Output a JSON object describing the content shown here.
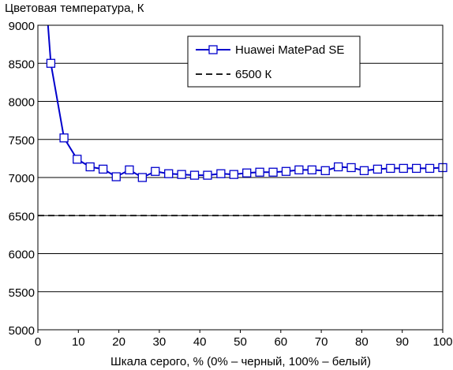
{
  "chart_data": {
    "type": "line",
    "title": "",
    "ylabel": "Цветовая температура, К",
    "xlabel": "Шкала серого, % (0% – черный, 100% – белый)",
    "xlim": [
      0,
      100
    ],
    "ylim": [
      5000,
      9000
    ],
    "x_ticks": [
      "0",
      "10",
      "20",
      "30",
      "40",
      "50",
      "60",
      "70",
      "80",
      "90",
      "100"
    ],
    "y_ticks": [
      "5000",
      "5500",
      "6000",
      "6500",
      "7000",
      "7500",
      "8000",
      "8500",
      "9000"
    ],
    "grid": "horizontal",
    "legend_position": "top-right",
    "series": [
      {
        "name": "Huawei MatePad SE",
        "color": "#0000cc",
        "marker": "square",
        "x": [
          3.2,
          6.45,
          9.7,
          12.9,
          16.1,
          19.35,
          22.6,
          25.8,
          29.0,
          32.3,
          35.5,
          38.7,
          41.9,
          45.2,
          48.4,
          51.6,
          54.8,
          58.1,
          61.3,
          64.5,
          67.7,
          71.0,
          74.2,
          77.4,
          80.6,
          83.9,
          87.1,
          90.3,
          93.5,
          96.8,
          100
        ],
        "values": [
          8500,
          7520,
          7240,
          7140,
          7110,
          7010,
          7100,
          7000,
          7080,
          7050,
          7040,
          7030,
          7030,
          7050,
          7040,
          7060,
          7070,
          7070,
          7080,
          7100,
          7100,
          7090,
          7140,
          7130,
          7090,
          7110,
          7120,
          7120,
          7120,
          7120,
          7130
        ],
        "steep_start": {
          "x": 2.5,
          "y": 9000
        }
      },
      {
        "name": "6500 К",
        "color": "#000000",
        "dashed": true,
        "values": [
          6500
        ]
      }
    ]
  }
}
